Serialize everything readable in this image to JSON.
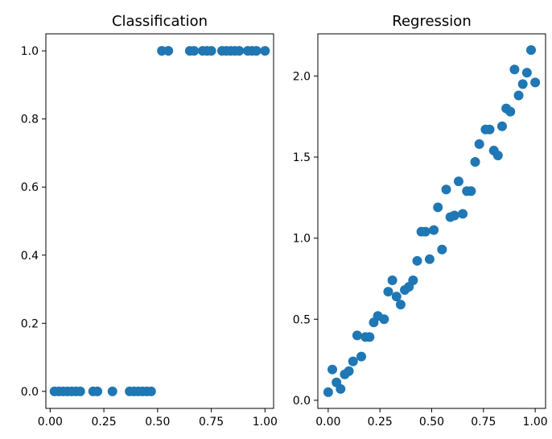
{
  "chart_data": [
    {
      "type": "scatter",
      "title": "Classification",
      "xlabel": "",
      "ylabel": "",
      "xlim": [
        -0.02,
        1.04
      ],
      "ylim": [
        -0.05,
        1.05
      ],
      "xticks": [
        0.0,
        0.25,
        0.5,
        0.75,
        1.0
      ],
      "xtick_labels": [
        "0.00",
        "0.25",
        "0.50",
        "0.75",
        "1.00"
      ],
      "yticks": [
        0.0,
        0.2,
        0.4,
        0.6,
        0.8,
        1.0
      ],
      "ytick_labels": [
        "0.0",
        "0.2",
        "0.4",
        "0.6",
        "0.8",
        "1.0"
      ],
      "grid": false,
      "marker_color": "#1f77b4",
      "series": [
        {
          "x": [
            0.02,
            0.04,
            0.06,
            0.08,
            0.1,
            0.12,
            0.14,
            0.2,
            0.22,
            0.29,
            0.37,
            0.39,
            0.41,
            0.43,
            0.45,
            0.47,
            0.52,
            0.55,
            0.65,
            0.67,
            0.71,
            0.73,
            0.75,
            0.8,
            0.82,
            0.84,
            0.86,
            0.88,
            0.92,
            0.94,
            0.96,
            1.0
          ],
          "y": [
            0,
            0,
            0,
            0,
            0,
            0,
            0,
            0,
            0,
            0,
            0,
            0,
            0,
            0,
            0,
            0,
            1,
            1,
            1,
            1,
            1,
            1,
            1,
            1,
            1,
            1,
            1,
            1,
            1,
            1,
            1,
            1
          ]
        }
      ]
    },
    {
      "type": "scatter",
      "title": "Regression",
      "xlabel": "",
      "ylabel": "",
      "xlim": [
        -0.05,
        1.05
      ],
      "ylim": [
        -0.05,
        2.26
      ],
      "xticks": [
        0.0,
        0.25,
        0.5,
        0.75,
        1.0
      ],
      "xtick_labels": [
        "0.00",
        "0.25",
        "0.50",
        "0.75",
        "1.00"
      ],
      "yticks": [
        0.0,
        0.5,
        1.0,
        1.5,
        2.0
      ],
      "ytick_labels": [
        "0.0",
        "0.5",
        "1.0",
        "1.5",
        "2.0"
      ],
      "grid": false,
      "marker_color": "#1f77b4",
      "series": [
        {
          "x": [
            0.0,
            0.02,
            0.04,
            0.06,
            0.08,
            0.1,
            0.12,
            0.14,
            0.16,
            0.18,
            0.2,
            0.22,
            0.24,
            0.27,
            0.29,
            0.31,
            0.33,
            0.35,
            0.37,
            0.39,
            0.41,
            0.43,
            0.45,
            0.47,
            0.49,
            0.51,
            0.53,
            0.55,
            0.57,
            0.59,
            0.61,
            0.63,
            0.65,
            0.67,
            0.69,
            0.71,
            0.73,
            0.76,
            0.78,
            0.8,
            0.82,
            0.84,
            0.86,
            0.88,
            0.9,
            0.92,
            0.94,
            0.96,
            0.98,
            1.0
          ],
          "y": [
            0.05,
            0.19,
            0.11,
            0.07,
            0.16,
            0.18,
            0.24,
            0.4,
            0.27,
            0.39,
            0.39,
            0.48,
            0.52,
            0.5,
            0.67,
            0.74,
            0.64,
            0.59,
            0.68,
            0.7,
            0.74,
            0.86,
            1.04,
            1.04,
            0.87,
            1.05,
            1.19,
            0.93,
            1.3,
            1.13,
            1.14,
            1.35,
            1.15,
            1.29,
            1.29,
            1.47,
            1.58,
            1.67,
            1.67,
            1.54,
            1.51,
            1.69,
            1.8,
            1.78,
            2.04,
            1.88,
            1.95,
            2.02,
            2.16,
            1.96
          ]
        }
      ]
    }
  ]
}
